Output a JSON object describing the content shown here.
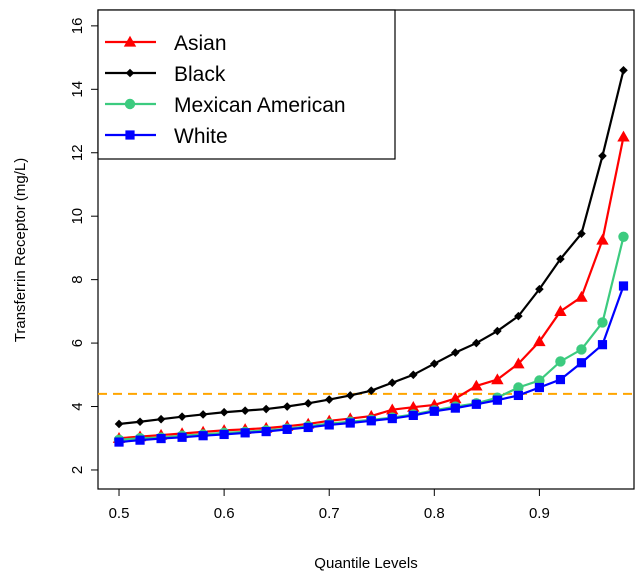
{
  "chart_data": {
    "type": "line",
    "xlabel": "Quantile Levels",
    "ylabel": "Transferrin Receptor (mg/L)",
    "xlim": [
      0.48,
      0.99
    ],
    "ylim": [
      1.4,
      16.5
    ],
    "x_ticks": [
      0.5,
      0.6,
      0.7,
      0.8,
      0.9
    ],
    "x_tick_labels": [
      "0.5",
      "0.6",
      "0.7",
      "0.8",
      "0.9"
    ],
    "y_ticks": [
      2,
      4,
      6,
      8,
      10,
      12,
      14,
      16
    ],
    "y_tick_labels": [
      "2",
      "4",
      "6",
      "8",
      "10",
      "12",
      "14",
      "16"
    ],
    "legend_position": "top-left",
    "reference_line": {
      "y": 4.4,
      "color": "#FFA500",
      "style": "dashed"
    },
    "x": [
      0.5,
      0.52,
      0.54,
      0.56,
      0.58,
      0.6,
      0.62,
      0.64,
      0.66,
      0.68,
      0.7,
      0.72,
      0.74,
      0.76,
      0.78,
      0.8,
      0.82,
      0.84,
      0.86,
      0.88,
      0.9,
      0.92,
      0.94,
      0.96,
      0.98
    ],
    "series": [
      {
        "name": "Asian",
        "color": "#FF0000",
        "marker": "triangle",
        "values": [
          3.0,
          3.05,
          3.1,
          3.15,
          3.2,
          3.25,
          3.28,
          3.32,
          3.38,
          3.45,
          3.55,
          3.62,
          3.7,
          3.9,
          3.98,
          4.05,
          4.25,
          4.65,
          4.85,
          5.35,
          6.05,
          7.0,
          7.45,
          9.25,
          12.5
        ]
      },
      {
        "name": "Black",
        "color": "#000000",
        "marker": "diamond",
        "values": [
          3.45,
          3.52,
          3.6,
          3.68,
          3.75,
          3.82,
          3.87,
          3.92,
          4.0,
          4.1,
          4.22,
          4.35,
          4.5,
          4.75,
          5.0,
          5.35,
          5.7,
          6.0,
          6.38,
          6.85,
          7.7,
          8.65,
          9.45,
          11.9,
          14.6
        ]
      },
      {
        "name": "Mexican American",
        "color": "#3CCB7F",
        "marker": "circle",
        "values": [
          2.95,
          3.0,
          3.02,
          3.08,
          3.12,
          3.17,
          3.2,
          3.25,
          3.3,
          3.38,
          3.46,
          3.52,
          3.58,
          3.65,
          3.75,
          3.88,
          4.0,
          4.1,
          4.28,
          4.6,
          4.82,
          5.42,
          5.8,
          6.65,
          9.35
        ]
      },
      {
        "name": "White",
        "color": "#0000FF",
        "marker": "square",
        "values": [
          2.88,
          2.94,
          2.99,
          3.03,
          3.08,
          3.12,
          3.17,
          3.21,
          3.28,
          3.34,
          3.42,
          3.48,
          3.55,
          3.62,
          3.72,
          3.85,
          3.95,
          4.07,
          4.2,
          4.35,
          4.6,
          4.85,
          5.38,
          5.95,
          7.8
        ]
      }
    ]
  }
}
